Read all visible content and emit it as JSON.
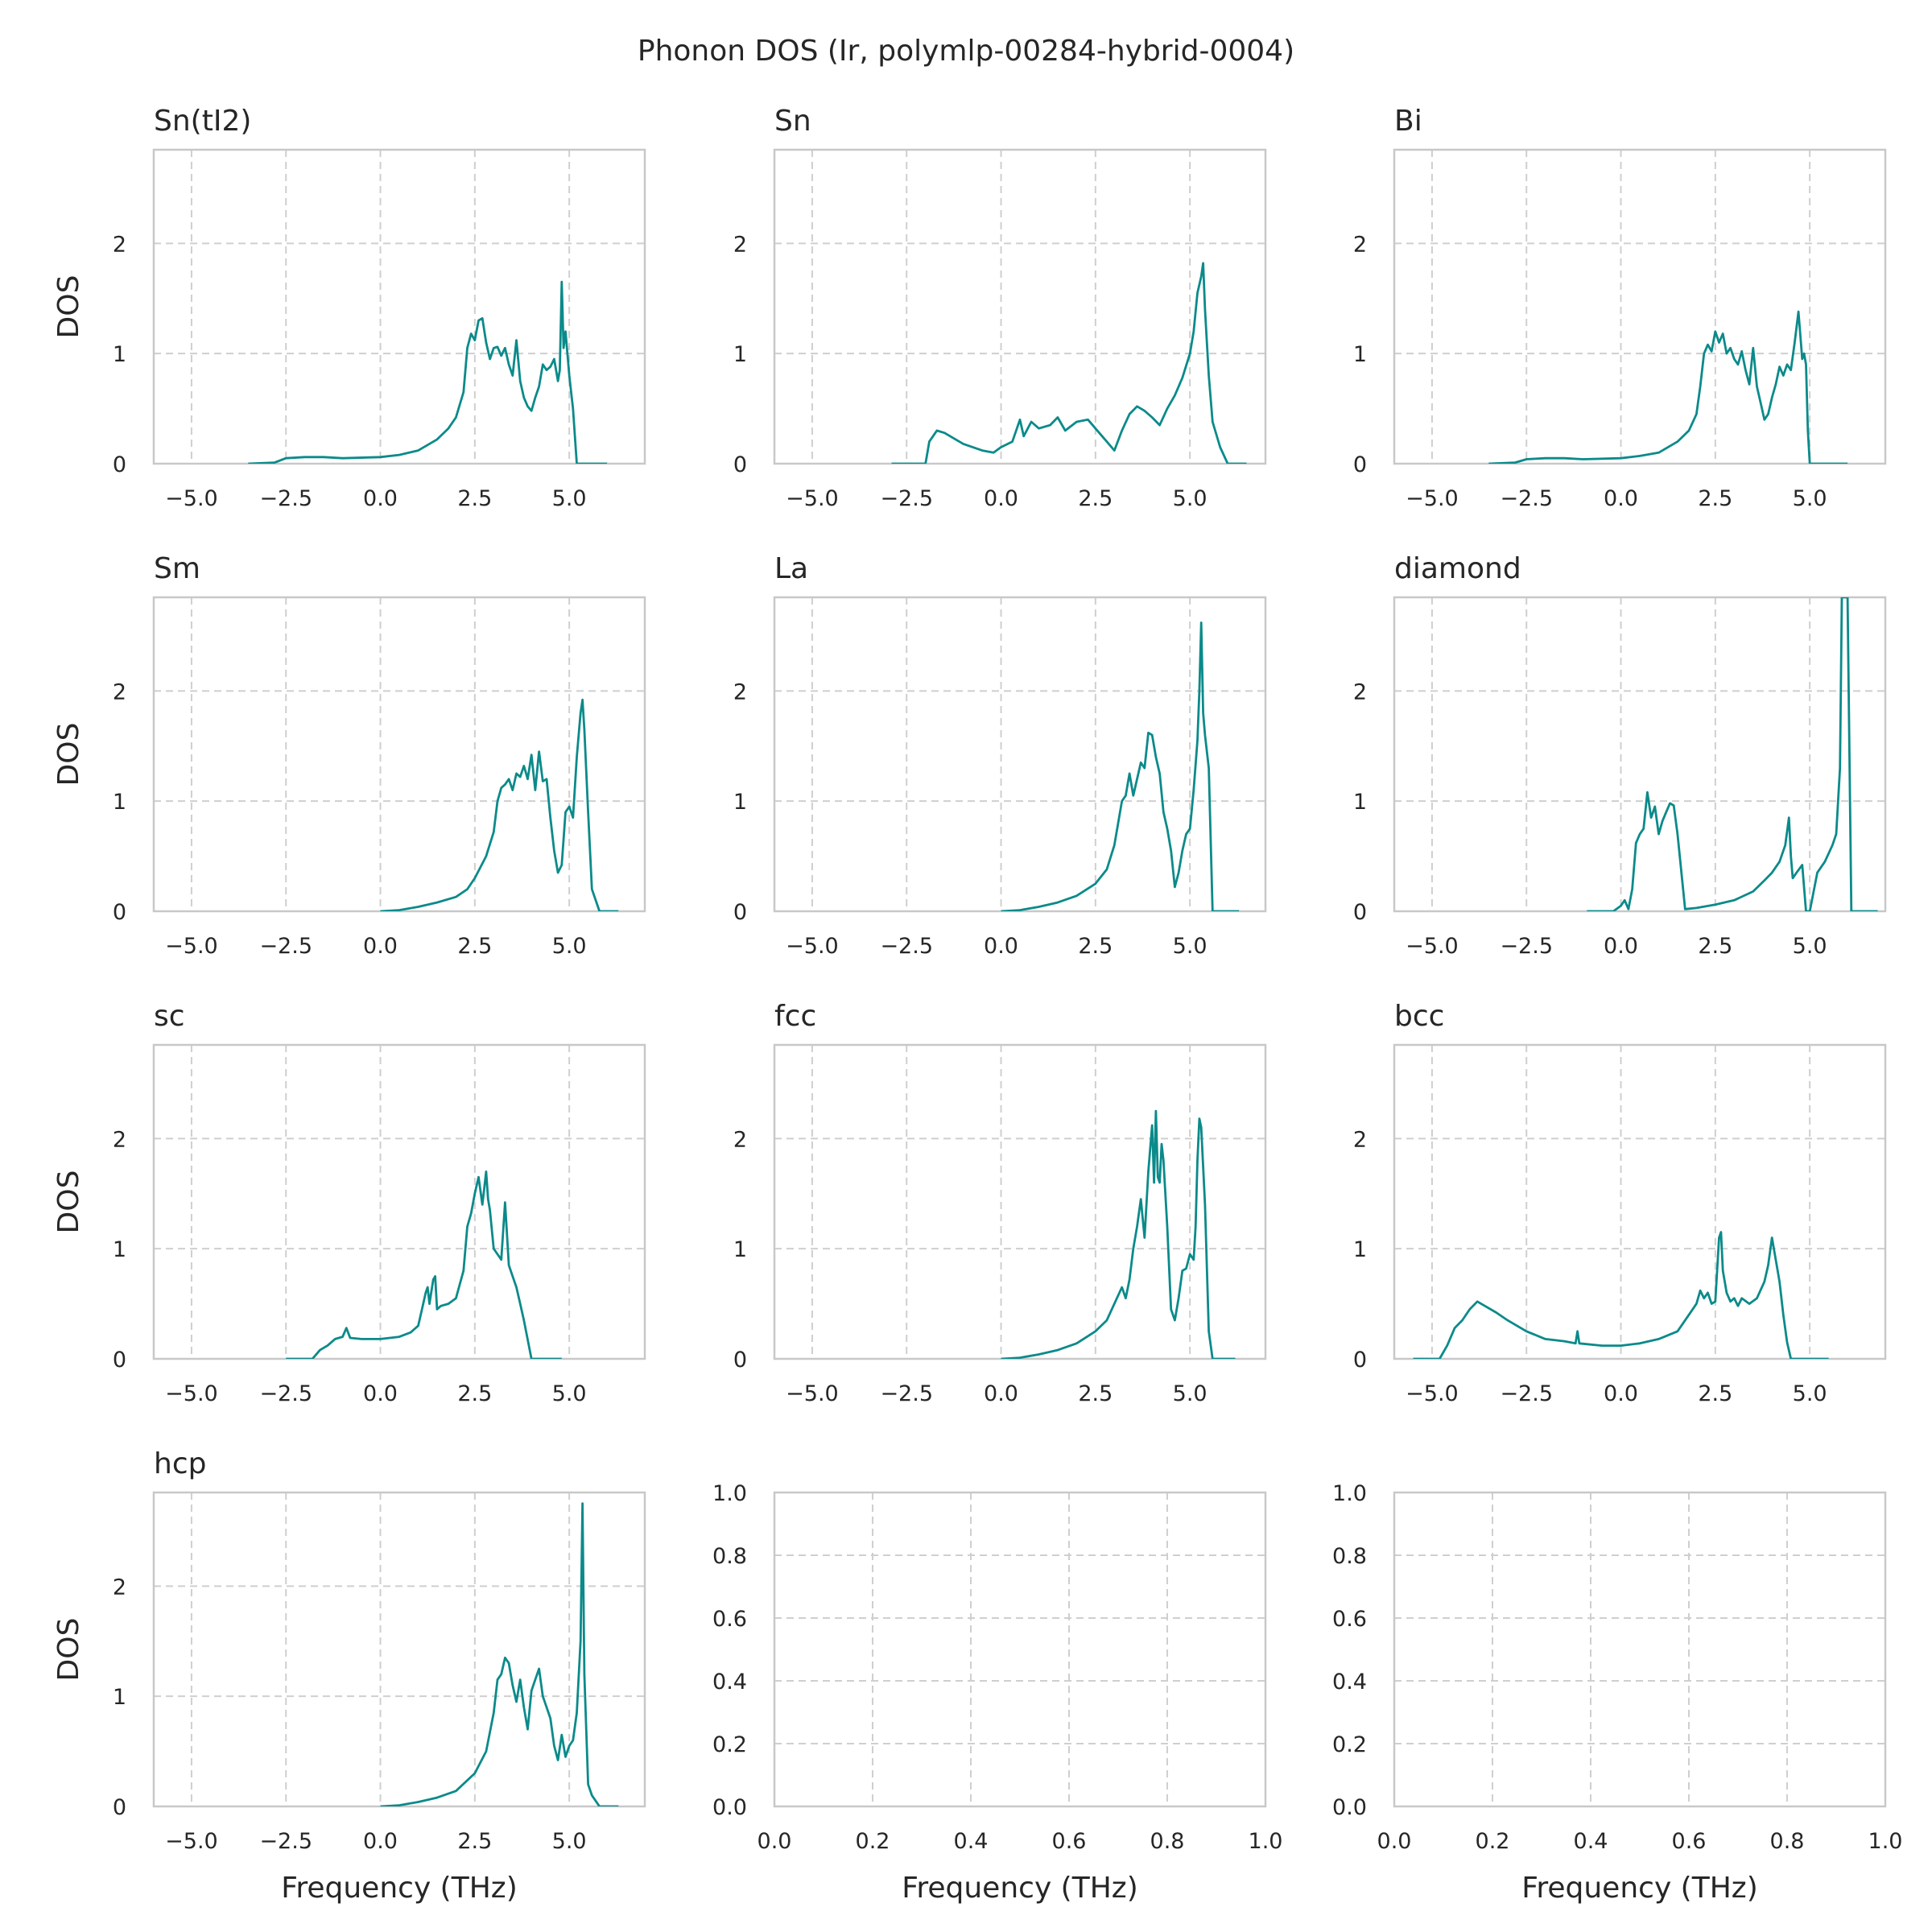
{
  "figure_title": "Phonon DOS (Ir, polymlp-00284-hybrid-0004)",
  "colors": {
    "line": "#0b8a8a",
    "grid": "#cfcfcf",
    "frame": "#c8c8c8"
  },
  "chart_data": [
    {
      "type": "line",
      "title": "Sn(tI2)",
      "xlabel": "",
      "ylabel": "DOS",
      "xlim": [
        -6,
        7
      ],
      "ylim": [
        0,
        2.85
      ],
      "xticks": [
        -5.0,
        -2.5,
        0.0,
        2.5,
        5.0
      ],
      "xtick_labels": [
        "−5.0",
        "−2.5",
        "0.0",
        "2.5",
        "5.0"
      ],
      "yticks": [
        0,
        1,
        2
      ],
      "ytick_labels": [
        "0",
        "1",
        "2"
      ],
      "grid": true,
      "x": [
        -3.5,
        -2.8,
        -2.5,
        -2.0,
        -1.5,
        -1.0,
        0.0,
        0.5,
        1.0,
        1.5,
        1.8,
        2.0,
        2.2,
        2.3,
        2.4,
        2.5,
        2.6,
        2.7,
        2.8,
        2.9,
        3.0,
        3.1,
        3.2,
        3.3,
        3.4,
        3.5,
        3.6,
        3.7,
        3.8,
        3.9,
        4.0,
        4.1,
        4.2,
        4.3,
        4.4,
        4.5,
        4.6,
        4.7,
        4.75,
        4.8,
        4.85,
        4.9,
        5.0,
        5.1,
        5.2,
        5.3,
        5.5,
        6.0
      ],
      "y": [
        0.0,
        0.01,
        0.05,
        0.06,
        0.06,
        0.05,
        0.06,
        0.08,
        0.12,
        0.22,
        0.32,
        0.42,
        0.65,
        1.05,
        1.18,
        1.12,
        1.3,
        1.32,
        1.1,
        0.95,
        1.05,
        1.06,
        0.98,
        1.05,
        0.9,
        0.8,
        1.12,
        0.75,
        0.6,
        0.52,
        0.48,
        0.6,
        0.7,
        0.9,
        0.85,
        0.88,
        0.95,
        0.75,
        0.85,
        1.65,
        1.05,
        1.2,
        0.8,
        0.5,
        0.0,
        0.0,
        0.0,
        0.0
      ]
    },
    {
      "type": "line",
      "title": "Sn",
      "xlabel": "",
      "ylabel": "",
      "xlim": [
        -6,
        7
      ],
      "ylim": [
        0,
        2.85
      ],
      "xticks": [
        -5.0,
        -2.5,
        0.0,
        2.5,
        5.0
      ],
      "xtick_labels": [
        "−5.0",
        "−2.5",
        "0.0",
        "2.5",
        "5.0"
      ],
      "yticks": [
        0,
        1,
        2
      ],
      "ytick_labels": [
        "0",
        "1",
        "2"
      ],
      "grid": true,
      "x": [
        -2.9,
        -2.0,
        -1.9,
        -1.7,
        -1.5,
        -1.2,
        -1.0,
        -0.5,
        -0.2,
        0.0,
        0.3,
        0.5,
        0.6,
        0.8,
        1.0,
        1.3,
        1.5,
        1.7,
        2.0,
        2.3,
        2.6,
        2.8,
        3.0,
        3.2,
        3.4,
        3.6,
        3.8,
        4.0,
        4.2,
        4.4,
        4.6,
        4.8,
        5.0,
        5.1,
        5.2,
        5.3,
        5.35,
        5.4,
        5.5,
        5.6,
        5.8,
        6.0,
        6.5
      ],
      "y": [
        0.0,
        0.0,
        0.2,
        0.3,
        0.28,
        0.22,
        0.18,
        0.12,
        0.1,
        0.15,
        0.2,
        0.4,
        0.25,
        0.38,
        0.32,
        0.35,
        0.42,
        0.3,
        0.38,
        0.4,
        0.28,
        0.2,
        0.12,
        0.3,
        0.45,
        0.52,
        0.48,
        0.42,
        0.35,
        0.5,
        0.62,
        0.78,
        1.0,
        1.2,
        1.55,
        1.7,
        1.82,
        1.4,
        0.8,
        0.38,
        0.15,
        0.0,
        0.0
      ]
    },
    {
      "type": "line",
      "title": "Bi",
      "xlabel": "",
      "ylabel": "",
      "xlim": [
        -6,
        7
      ],
      "ylim": [
        0,
        2.85
      ],
      "xticks": [
        -5.0,
        -2.5,
        0.0,
        2.5,
        5.0
      ],
      "xtick_labels": [
        "−5.0",
        "−2.5",
        "0.0",
        "2.5",
        "5.0"
      ],
      "yticks": [
        0,
        1,
        2
      ],
      "ytick_labels": [
        "0",
        "1",
        "2"
      ],
      "grid": true,
      "x": [
        -3.5,
        -2.8,
        -2.5,
        -2.0,
        -1.5,
        -1.0,
        0.0,
        0.5,
        1.0,
        1.5,
        1.8,
        2.0,
        2.1,
        2.2,
        2.3,
        2.4,
        2.5,
        2.6,
        2.7,
        2.8,
        2.9,
        3.0,
        3.1,
        3.2,
        3.3,
        3.4,
        3.5,
        3.6,
        3.7,
        3.8,
        3.9,
        4.0,
        4.1,
        4.2,
        4.3,
        4.4,
        4.5,
        4.6,
        4.7,
        4.8,
        4.85,
        4.9,
        4.95,
        5.0,
        5.1,
        6.0
      ],
      "y": [
        0.0,
        0.01,
        0.04,
        0.05,
        0.05,
        0.04,
        0.05,
        0.07,
        0.1,
        0.2,
        0.3,
        0.45,
        0.7,
        1.0,
        1.08,
        1.02,
        1.2,
        1.1,
        1.18,
        1.0,
        1.05,
        0.95,
        0.9,
        1.02,
        0.85,
        0.72,
        1.05,
        0.7,
        0.55,
        0.4,
        0.45,
        0.6,
        0.72,
        0.88,
        0.8,
        0.9,
        0.85,
        1.1,
        1.38,
        0.95,
        1.0,
        0.9,
        0.3,
        0.0,
        0.0,
        0.0
      ]
    },
    {
      "type": "line",
      "title": "Sm",
      "xlabel": "",
      "ylabel": "DOS",
      "xlim": [
        -6,
        7
      ],
      "ylim": [
        0,
        2.85
      ],
      "xticks": [
        -5.0,
        -2.5,
        0.0,
        2.5,
        5.0
      ],
      "xtick_labels": [
        "−5.0",
        "−2.5",
        "0.0",
        "2.5",
        "5.0"
      ],
      "yticks": [
        0,
        1,
        2
      ],
      "ytick_labels": [
        "0",
        "1",
        "2"
      ],
      "grid": true,
      "x": [
        0.0,
        0.5,
        1.0,
        1.5,
        2.0,
        2.3,
        2.5,
        2.8,
        3.0,
        3.1,
        3.2,
        3.3,
        3.4,
        3.5,
        3.6,
        3.7,
        3.8,
        3.9,
        4.0,
        4.1,
        4.2,
        4.3,
        4.4,
        4.5,
        4.6,
        4.7,
        4.8,
        4.9,
        5.0,
        5.1,
        5.2,
        5.3,
        5.35,
        5.4,
        5.5,
        5.6,
        5.8,
        6.3
      ],
      "y": [
        0.0,
        0.01,
        0.04,
        0.08,
        0.13,
        0.2,
        0.3,
        0.5,
        0.72,
        1.0,
        1.12,
        1.15,
        1.2,
        1.1,
        1.25,
        1.22,
        1.32,
        1.2,
        1.42,
        1.1,
        1.45,
        1.18,
        1.2,
        0.85,
        0.55,
        0.35,
        0.42,
        0.9,
        0.95,
        0.85,
        1.4,
        1.8,
        1.92,
        1.65,
        0.9,
        0.2,
        0.0,
        0.0
      ]
    },
    {
      "type": "line",
      "title": "La",
      "xlabel": "",
      "ylabel": "",
      "xlim": [
        -6,
        7
      ],
      "ylim": [
        0,
        2.85
      ],
      "xticks": [
        -5.0,
        -2.5,
        0.0,
        2.5,
        5.0
      ],
      "xtick_labels": [
        "−5.0",
        "−2.5",
        "0.0",
        "2.5",
        "5.0"
      ],
      "yticks": [
        0,
        1,
        2
      ],
      "ytick_labels": [
        "0",
        "1",
        "2"
      ],
      "grid": true,
      "x": [
        0.0,
        0.5,
        1.0,
        1.5,
        2.0,
        2.5,
        2.8,
        3.0,
        3.2,
        3.3,
        3.4,
        3.5,
        3.6,
        3.7,
        3.8,
        3.9,
        4.0,
        4.1,
        4.2,
        4.3,
        4.4,
        4.5,
        4.6,
        4.7,
        4.8,
        4.9,
        5.0,
        5.1,
        5.2,
        5.25,
        5.3,
        5.35,
        5.4,
        5.5,
        5.6,
        6.3
      ],
      "y": [
        0.0,
        0.01,
        0.04,
        0.08,
        0.14,
        0.25,
        0.38,
        0.6,
        1.0,
        1.05,
        1.25,
        1.05,
        1.2,
        1.35,
        1.3,
        1.62,
        1.6,
        1.4,
        1.25,
        0.9,
        0.75,
        0.55,
        0.22,
        0.35,
        0.55,
        0.7,
        0.75,
        1.1,
        1.55,
        2.0,
        2.62,
        1.8,
        1.6,
        1.3,
        0.0,
        0.0
      ]
    },
    {
      "type": "line",
      "title": "diamond",
      "xlabel": "",
      "ylabel": "",
      "xlim": [
        -6,
        7
      ],
      "ylim": [
        0,
        2.85
      ],
      "xticks": [
        -5.0,
        -2.5,
        0.0,
        2.5,
        5.0
      ],
      "xtick_labels": [
        "−5.0",
        "−2.5",
        "0.0",
        "2.5",
        "5.0"
      ],
      "yticks": [
        0,
        1,
        2
      ],
      "ytick_labels": [
        "0",
        "1",
        "2"
      ],
      "grid": true,
      "x": [
        -0.9,
        -0.2,
        0.0,
        0.1,
        0.2,
        0.3,
        0.4,
        0.5,
        0.6,
        0.7,
        0.8,
        0.9,
        1.0,
        1.1,
        1.2,
        1.3,
        1.4,
        1.5,
        1.7,
        2.0,
        2.5,
        3.0,
        3.5,
        3.8,
        4.0,
        4.2,
        4.35,
        4.45,
        4.5,
        4.55,
        4.65,
        4.8,
        4.9,
        5.0,
        5.2,
        5.4,
        5.6,
        5.7,
        5.8,
        5.85,
        5.9,
        6.0,
        6.1,
        6.2,
        6.3,
        6.8
      ],
      "y": [
        0.0,
        0.0,
        0.05,
        0.1,
        0.02,
        0.2,
        0.62,
        0.7,
        0.75,
        1.08,
        0.85,
        0.95,
        0.7,
        0.82,
        0.9,
        0.98,
        0.96,
        0.7,
        0.02,
        0.03,
        0.06,
        0.1,
        0.18,
        0.28,
        0.35,
        0.45,
        0.6,
        0.85,
        0.5,
        0.3,
        0.35,
        0.42,
        0.0,
        0.0,
        0.35,
        0.45,
        0.6,
        0.7,
        1.3,
        2.85,
        2.85,
        2.85,
        0.0,
        0.0,
        0.0,
        0.0
      ]
    },
    {
      "type": "line",
      "title": "sc",
      "xlabel": "",
      "ylabel": "DOS",
      "xlim": [
        -6,
        7
      ],
      "ylim": [
        0,
        2.85
      ],
      "xticks": [
        -5.0,
        -2.5,
        0.0,
        2.5,
        5.0
      ],
      "xtick_labels": [
        "−5.0",
        "−2.5",
        "0.0",
        "2.5",
        "5.0"
      ],
      "yticks": [
        0,
        1,
        2
      ],
      "ytick_labels": [
        "0",
        "1",
        "2"
      ],
      "grid": true,
      "x": [
        -2.5,
        -1.8,
        -1.6,
        -1.4,
        -1.2,
        -1.0,
        -0.9,
        -0.8,
        -0.5,
        0.0,
        0.5,
        0.8,
        1.0,
        1.1,
        1.2,
        1.25,
        1.3,
        1.4,
        1.45,
        1.5,
        1.6,
        1.8,
        2.0,
        2.2,
        2.3,
        2.4,
        2.5,
        2.6,
        2.7,
        2.75,
        2.8,
        2.85,
        2.9,
        3.0,
        3.1,
        3.2,
        3.3,
        3.4,
        3.5,
        3.6,
        3.7,
        3.8,
        4.0,
        4.2,
        4.8
      ],
      "y": [
        0.0,
        0.0,
        0.08,
        0.12,
        0.18,
        0.2,
        0.28,
        0.19,
        0.18,
        0.18,
        0.2,
        0.24,
        0.3,
        0.45,
        0.6,
        0.65,
        0.5,
        0.72,
        0.75,
        0.45,
        0.48,
        0.5,
        0.55,
        0.8,
        1.2,
        1.32,
        1.5,
        1.65,
        1.4,
        1.55,
        1.7,
        1.45,
        1.35,
        1.0,
        0.95,
        0.9,
        1.42,
        0.85,
        0.75,
        0.65,
        0.5,
        0.35,
        0.0,
        0.0,
        0.0
      ]
    },
    {
      "type": "line",
      "title": "fcc",
      "xlabel": "",
      "ylabel": "",
      "xlim": [
        -6,
        7
      ],
      "ylim": [
        0,
        2.85
      ],
      "xticks": [
        -5.0,
        -2.5,
        0.0,
        2.5,
        5.0
      ],
      "xtick_labels": [
        "−5.0",
        "−2.5",
        "0.0",
        "2.5",
        "5.0"
      ],
      "yticks": [
        0,
        1,
        2
      ],
      "ytick_labels": [
        "0",
        "1",
        "2"
      ],
      "grid": true,
      "x": [
        0.0,
        0.5,
        1.0,
        1.5,
        2.0,
        2.5,
        2.8,
        3.0,
        3.2,
        3.3,
        3.4,
        3.5,
        3.6,
        3.7,
        3.8,
        3.9,
        4.0,
        4.05,
        4.1,
        4.15,
        4.2,
        4.25,
        4.3,
        4.4,
        4.5,
        4.6,
        4.7,
        4.8,
        4.9,
        5.0,
        5.1,
        5.15,
        5.2,
        5.25,
        5.3,
        5.4,
        5.5,
        5.6,
        6.2
      ],
      "y": [
        0.0,
        0.01,
        0.04,
        0.08,
        0.14,
        0.25,
        0.35,
        0.5,
        0.65,
        0.55,
        0.72,
        1.0,
        1.2,
        1.45,
        1.1,
        1.7,
        2.12,
        1.6,
        2.25,
        1.65,
        1.6,
        1.95,
        1.8,
        1.2,
        0.45,
        0.35,
        0.55,
        0.8,
        0.82,
        0.95,
        0.9,
        1.2,
        1.8,
        2.18,
        2.1,
        1.4,
        0.25,
        0.0,
        0.0
      ]
    },
    {
      "type": "line",
      "title": "bcc",
      "xlabel": "",
      "ylabel": "",
      "xlim": [
        -6,
        7
      ],
      "ylim": [
        0,
        2.85
      ],
      "xticks": [
        -5.0,
        -2.5,
        0.0,
        2.5,
        5.0
      ],
      "xtick_labels": [
        "−5.0",
        "−2.5",
        "0.0",
        "2.5",
        "5.0"
      ],
      "yticks": [
        0,
        1,
        2
      ],
      "ytick_labels": [
        "0",
        "1",
        "2"
      ],
      "grid": true,
      "x": [
        -5.5,
        -4.8,
        -4.6,
        -4.4,
        -4.2,
        -4.0,
        -3.8,
        -3.6,
        -3.3,
        -3.0,
        -2.5,
        -2.0,
        -1.5,
        -1.2,
        -1.15,
        -1.1,
        -0.5,
        0.0,
        0.5,
        1.0,
        1.5,
        1.8,
        2.0,
        2.1,
        2.2,
        2.3,
        2.4,
        2.5,
        2.6,
        2.65,
        2.7,
        2.8,
        2.9,
        3.0,
        3.1,
        3.2,
        3.4,
        3.6,
        3.8,
        3.9,
        4.0,
        4.1,
        4.2,
        4.3,
        4.4,
        4.5,
        5.5
      ],
      "y": [
        0.0,
        0.0,
        0.12,
        0.28,
        0.35,
        0.45,
        0.52,
        0.48,
        0.42,
        0.35,
        0.25,
        0.18,
        0.16,
        0.14,
        0.25,
        0.14,
        0.12,
        0.12,
        0.14,
        0.18,
        0.25,
        0.4,
        0.5,
        0.62,
        0.55,
        0.6,
        0.5,
        0.52,
        1.1,
        1.15,
        0.8,
        0.6,
        0.52,
        0.55,
        0.48,
        0.55,
        0.5,
        0.55,
        0.7,
        0.85,
        1.1,
        0.9,
        0.7,
        0.4,
        0.15,
        0.0,
        0.0
      ]
    },
    {
      "type": "line",
      "title": "hcp",
      "xlabel": "Frequency (THz)",
      "ylabel": "DOS",
      "xlim": [
        -6,
        7
      ],
      "ylim": [
        0,
        2.85
      ],
      "xticks": [
        -5.0,
        -2.5,
        0.0,
        2.5,
        5.0
      ],
      "xtick_labels": [
        "−5.0",
        "−2.5",
        "0.0",
        "2.5",
        "5.0"
      ],
      "yticks": [
        0,
        1,
        2
      ],
      "ytick_labels": [
        "0",
        "1",
        "2"
      ],
      "grid": true,
      "x": [
        0.0,
        0.5,
        1.0,
        1.5,
        2.0,
        2.5,
        2.8,
        3.0,
        3.1,
        3.2,
        3.3,
        3.4,
        3.5,
        3.6,
        3.7,
        3.8,
        3.9,
        4.0,
        4.1,
        4.2,
        4.3,
        4.4,
        4.5,
        4.6,
        4.7,
        4.8,
        4.9,
        5.0,
        5.1,
        5.2,
        5.3,
        5.35,
        5.4,
        5.5,
        5.6,
        5.8,
        6.3
      ],
      "y": [
        0.0,
        0.01,
        0.04,
        0.08,
        0.14,
        0.3,
        0.5,
        0.85,
        1.15,
        1.2,
        1.35,
        1.3,
        1.1,
        0.95,
        1.15,
        0.9,
        0.7,
        1.05,
        1.15,
        1.25,
        1.0,
        0.9,
        0.8,
        0.55,
        0.42,
        0.65,
        0.45,
        0.55,
        0.6,
        0.85,
        1.5,
        2.75,
        1.2,
        0.2,
        0.1,
        0.0,
        0.0
      ]
    },
    {
      "type": "line",
      "title": "",
      "xlabel": "Frequency (THz)",
      "ylabel": "",
      "xlim": [
        0,
        1
      ],
      "ylim": [
        0,
        1
      ],
      "xticks": [
        0.0,
        0.2,
        0.4,
        0.6,
        0.8,
        1.0
      ],
      "xtick_labels": [
        "0.0",
        "0.2",
        "0.4",
        "0.6",
        "0.8",
        "1.0"
      ],
      "yticks": [
        0.0,
        0.2,
        0.4,
        0.6,
        0.8,
        1.0
      ],
      "ytick_labels": [
        "0.0",
        "0.2",
        "0.4",
        "0.6",
        "0.8",
        "1.0"
      ],
      "grid": true,
      "x": [],
      "y": []
    },
    {
      "type": "line",
      "title": "",
      "xlabel": "Frequency (THz)",
      "ylabel": "",
      "xlim": [
        0,
        1
      ],
      "ylim": [
        0,
        1
      ],
      "xticks": [
        0.0,
        0.2,
        0.4,
        0.6,
        0.8,
        1.0
      ],
      "xtick_labels": [
        "0.0",
        "0.2",
        "0.4",
        "0.6",
        "0.8",
        "1.0"
      ],
      "yticks": [
        0.0,
        0.2,
        0.4,
        0.6,
        0.8,
        1.0
      ],
      "ytick_labels": [
        "0.0",
        "0.2",
        "0.4",
        "0.6",
        "0.8",
        "1.0"
      ],
      "grid": true,
      "x": [],
      "y": []
    }
  ]
}
